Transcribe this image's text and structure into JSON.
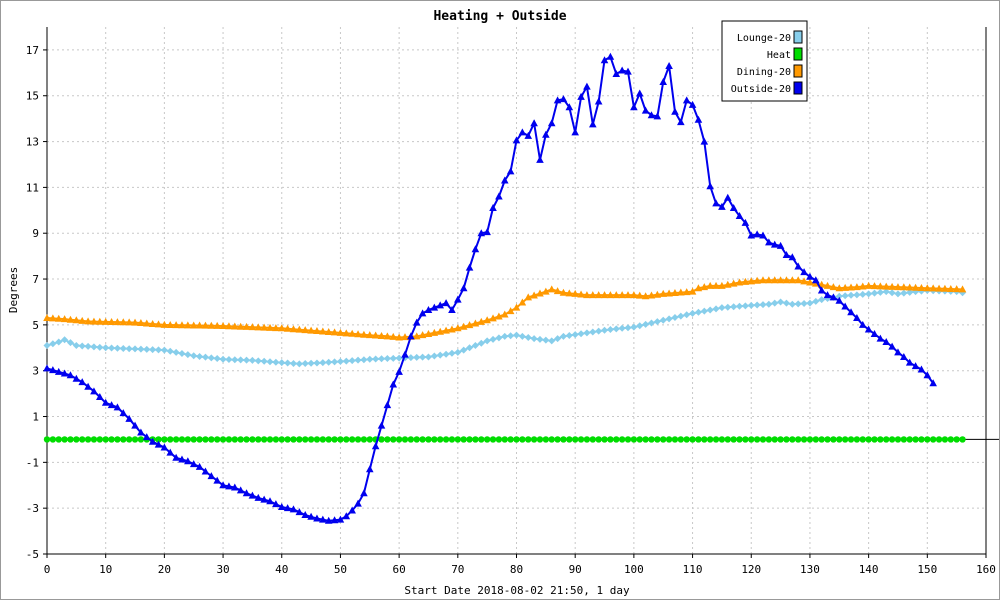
{
  "chart_data": {
    "type": "line",
    "title": "Heating + Outside",
    "xlabel": "Start Date 2018-08-02 21:50, 1 day",
    "ylabel": "Degrees",
    "xlim": [
      0,
      160
    ],
    "ylim": [
      -5,
      18
    ],
    "x_ticks": [
      0,
      10,
      20,
      30,
      40,
      50,
      60,
      70,
      80,
      90,
      100,
      110,
      120,
      130,
      140,
      150,
      160
    ],
    "y_ticks": [
      -5,
      -3,
      -1,
      1,
      3,
      5,
      7,
      9,
      11,
      13,
      15,
      17
    ],
    "grid": true,
    "legend_position": "top-right",
    "series": [
      {
        "name": "Lounge-20",
        "color": "#87ceeb",
        "marker": "diamond",
        "points": [
          [
            0,
            4.1
          ],
          [
            2,
            4.25
          ],
          [
            3,
            4.35
          ],
          [
            5,
            4.1
          ],
          [
            10,
            4.0
          ],
          [
            15,
            3.95
          ],
          [
            20,
            3.9
          ],
          [
            25,
            3.65
          ],
          [
            30,
            3.5
          ],
          [
            35,
            3.45
          ],
          [
            40,
            3.35
          ],
          [
            43,
            3.3
          ],
          [
            47,
            3.35
          ],
          [
            50,
            3.4
          ],
          [
            55,
            3.5
          ],
          [
            60,
            3.55
          ],
          [
            65,
            3.6
          ],
          [
            70,
            3.8
          ],
          [
            73,
            4.1
          ],
          [
            75,
            4.3
          ],
          [
            78,
            4.5
          ],
          [
            80,
            4.55
          ],
          [
            83,
            4.4
          ],
          [
            86,
            4.3
          ],
          [
            88,
            4.5
          ],
          [
            92,
            4.65
          ],
          [
            96,
            4.8
          ],
          [
            100,
            4.9
          ],
          [
            105,
            5.2
          ],
          [
            110,
            5.5
          ],
          [
            115,
            5.75
          ],
          [
            120,
            5.85
          ],
          [
            123,
            5.9
          ],
          [
            125,
            6.0
          ],
          [
            127,
            5.9
          ],
          [
            130,
            5.95
          ],
          [
            132,
            6.1
          ],
          [
            135,
            6.25
          ],
          [
            140,
            6.35
          ],
          [
            143,
            6.45
          ],
          [
            145,
            6.35
          ],
          [
            148,
            6.45
          ],
          [
            150,
            6.5
          ],
          [
            155,
            6.45
          ],
          [
            156,
            6.4
          ]
        ]
      },
      {
        "name": "Heat",
        "color": "#00dd00",
        "marker": "circle",
        "points": [
          [
            0,
            0
          ],
          [
            156,
            0
          ]
        ]
      },
      {
        "name": "Dining-20",
        "color": "#ff9900",
        "marker": "triangle",
        "points": [
          [
            0,
            5.3
          ],
          [
            3,
            5.25
          ],
          [
            7,
            5.15
          ],
          [
            15,
            5.1
          ],
          [
            20,
            5.0
          ],
          [
            30,
            4.95
          ],
          [
            40,
            4.85
          ],
          [
            45,
            4.75
          ],
          [
            50,
            4.65
          ],
          [
            55,
            4.55
          ],
          [
            58,
            4.5
          ],
          [
            60,
            4.45
          ],
          [
            63,
            4.5
          ],
          [
            65,
            4.6
          ],
          [
            70,
            4.85
          ],
          [
            75,
            5.2
          ],
          [
            78,
            5.45
          ],
          [
            80,
            5.75
          ],
          [
            82,
            6.2
          ],
          [
            85,
            6.45
          ],
          [
            86,
            6.55
          ],
          [
            88,
            6.4
          ],
          [
            92,
            6.3
          ],
          [
            100,
            6.3
          ],
          [
            102,
            6.25
          ],
          [
            105,
            6.35
          ],
          [
            110,
            6.45
          ],
          [
            111,
            6.6
          ],
          [
            113,
            6.7
          ],
          [
            115,
            6.7
          ],
          [
            118,
            6.85
          ],
          [
            122,
            6.95
          ],
          [
            128,
            6.95
          ],
          [
            130,
            6.85
          ],
          [
            133,
            6.7
          ],
          [
            135,
            6.6
          ],
          [
            138,
            6.65
          ],
          [
            140,
            6.7
          ],
          [
            145,
            6.65
          ],
          [
            150,
            6.6
          ],
          [
            156,
            6.55
          ]
        ]
      },
      {
        "name": "Outside-20",
        "color": "#0000ee",
        "marker": "triangle",
        "points": [
          [
            0,
            3.1
          ],
          [
            2,
            2.95
          ],
          [
            4,
            2.8
          ],
          [
            6,
            2.5
          ],
          [
            8,
            2.1
          ],
          [
            10,
            1.6
          ],
          [
            12,
            1.4
          ],
          [
            14,
            0.9
          ],
          [
            16,
            0.3
          ],
          [
            18,
            -0.1
          ],
          [
            20,
            -0.35
          ],
          [
            22,
            -0.8
          ],
          [
            24,
            -0.95
          ],
          [
            26,
            -1.2
          ],
          [
            28,
            -1.6
          ],
          [
            30,
            -2.0
          ],
          [
            32,
            -2.1
          ],
          [
            34,
            -2.35
          ],
          [
            36,
            -2.55
          ],
          [
            38,
            -2.7
          ],
          [
            40,
            -2.95
          ],
          [
            42,
            -3.05
          ],
          [
            44,
            -3.3
          ],
          [
            46,
            -3.45
          ],
          [
            48,
            -3.55
          ],
          [
            50,
            -3.5
          ],
          [
            51,
            -3.35
          ],
          [
            52,
            -3.1
          ],
          [
            53,
            -2.8
          ],
          [
            54,
            -2.35
          ],
          [
            55,
            -1.3
          ],
          [
            56,
            -0.3
          ],
          [
            57,
            0.6
          ],
          [
            58,
            1.5
          ],
          [
            59,
            2.4
          ],
          [
            60,
            2.95
          ],
          [
            61,
            3.7
          ],
          [
            62,
            4.5
          ],
          [
            63,
            5.1
          ],
          [
            64,
            5.5
          ],
          [
            65,
            5.65
          ],
          [
            66,
            5.75
          ],
          [
            67,
            5.85
          ],
          [
            68,
            5.95
          ],
          [
            69,
            5.65
          ],
          [
            70,
            6.1
          ],
          [
            71,
            6.6
          ],
          [
            72,
            7.5
          ],
          [
            73,
            8.3
          ],
          [
            74,
            9.0
          ],
          [
            75,
            9.05
          ],
          [
            76,
            10.1
          ],
          [
            77,
            10.6
          ],
          [
            78,
            11.3
          ],
          [
            79,
            11.7
          ],
          [
            80,
            13.05
          ],
          [
            81,
            13.4
          ],
          [
            82,
            13.25
          ],
          [
            83,
            13.8
          ],
          [
            84,
            12.2
          ],
          [
            85,
            13.3
          ],
          [
            86,
            13.8
          ],
          [
            87,
            14.8
          ],
          [
            88,
            14.85
          ],
          [
            89,
            14.5
          ],
          [
            90,
            13.4
          ],
          [
            91,
            14.95
          ],
          [
            92,
            15.4
          ],
          [
            93,
            13.75
          ],
          [
            94,
            14.75
          ],
          [
            95,
            16.55
          ],
          [
            96,
            16.7
          ],
          [
            97,
            15.95
          ],
          [
            98,
            16.1
          ],
          [
            99,
            16.05
          ],
          [
            100,
            14.5
          ],
          [
            101,
            15.1
          ],
          [
            102,
            14.35
          ],
          [
            103,
            14.15
          ],
          [
            104,
            14.1
          ],
          [
            105,
            15.6
          ],
          [
            106,
            16.3
          ],
          [
            107,
            14.3
          ],
          [
            108,
            13.85
          ],
          [
            109,
            14.8
          ],
          [
            110,
            14.6
          ],
          [
            111,
            13.95
          ],
          [
            112,
            13.0
          ],
          [
            113,
            11.05
          ],
          [
            114,
            10.3
          ],
          [
            115,
            10.15
          ],
          [
            116,
            10.55
          ],
          [
            117,
            10.1
          ],
          [
            118,
            9.75
          ],
          [
            119,
            9.45
          ],
          [
            120,
            8.9
          ],
          [
            121,
            8.95
          ],
          [
            122,
            8.9
          ],
          [
            123,
            8.6
          ],
          [
            124,
            8.5
          ],
          [
            125,
            8.45
          ],
          [
            126,
            8.05
          ],
          [
            127,
            7.95
          ],
          [
            128,
            7.55
          ],
          [
            129,
            7.3
          ],
          [
            130,
            7.1
          ],
          [
            131,
            6.95
          ],
          [
            132,
            6.5
          ],
          [
            133,
            6.3
          ],
          [
            134,
            6.2
          ],
          [
            135,
            6.05
          ],
          [
            136,
            5.8
          ],
          [
            137,
            5.55
          ],
          [
            138,
            5.3
          ],
          [
            139,
            5.0
          ],
          [
            140,
            4.8
          ],
          [
            141,
            4.6
          ],
          [
            142,
            4.4
          ],
          [
            143,
            4.25
          ],
          [
            144,
            4.05
          ],
          [
            145,
            3.8
          ],
          [
            146,
            3.6
          ],
          [
            147,
            3.35
          ],
          [
            148,
            3.2
          ],
          [
            149,
            3.05
          ],
          [
            150,
            2.8
          ],
          [
            151,
            2.45
          ]
        ]
      }
    ]
  }
}
